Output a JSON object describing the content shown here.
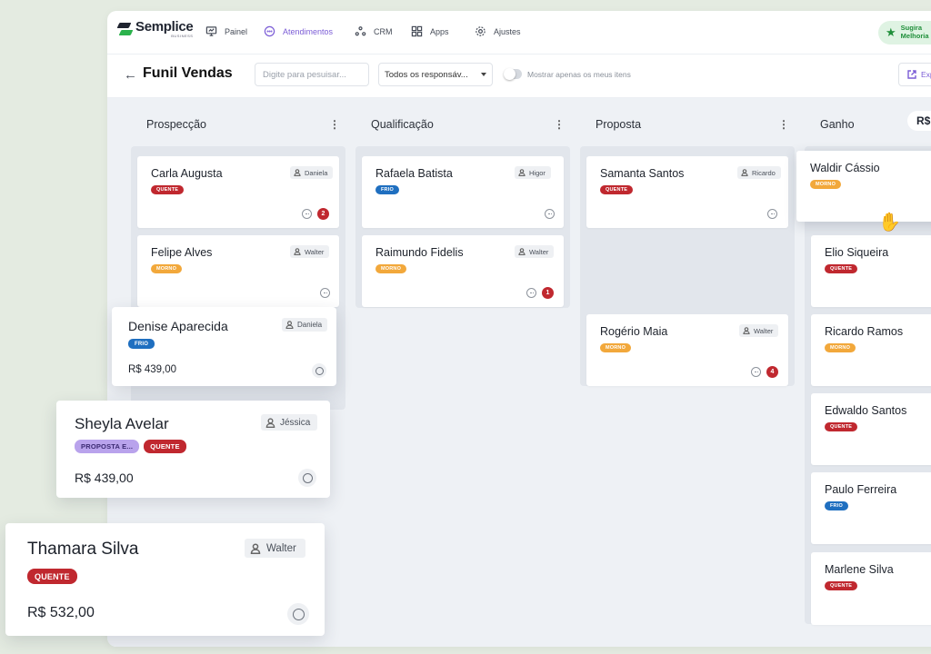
{
  "colors": {
    "quente": "#c0282f",
    "frio": "#1f6fc0",
    "morno": "#f2a83b",
    "proposta": "#b9a3ec",
    "accent": "#7b5cd6",
    "brand_green": "#2bb24c"
  },
  "logo": {
    "name": "Semplice",
    "sub": "BUSINESS"
  },
  "nav": [
    {
      "label": "Painel",
      "icon": "presentation-icon"
    },
    {
      "label": "Atendimentos",
      "icon": "chat-icon",
      "active": true
    },
    {
      "label": "CRM",
      "icon": "crm-icon"
    },
    {
      "label": "Apps",
      "icon": "apps-grid-icon"
    },
    {
      "label": "Ajustes",
      "icon": "gear-icon"
    }
  ],
  "sugira": {
    "line1": "Sugira",
    "line2": "Melhoria",
    "icon": "star-icon"
  },
  "toolbar": {
    "title": "Funil Vendas",
    "search_placeholder": "Digite para pesuisar...",
    "responsible_filter": "Todos os responsáv...",
    "toggle_label": "Mostrar apenas os meus itens",
    "export_label": "Exp"
  },
  "columns": [
    {
      "title": "Prospecção"
    },
    {
      "title": "Qualificação"
    },
    {
      "title": "Proposta"
    },
    {
      "title": "Ganho",
      "total": "R$"
    }
  ],
  "cards": {
    "carla": {
      "name": "Carla Augusta",
      "assignee": "Daniela",
      "tag": "QUENTE",
      "count": "2"
    },
    "felipe": {
      "name": "Felipe Alves",
      "assignee": "Walter",
      "tag": "MORNO"
    },
    "rafaela": {
      "name": "Rafaela Batista",
      "assignee": "Higor",
      "tag": "FRIO"
    },
    "raimundo": {
      "name": "Raimundo Fidelis",
      "assignee": "Walter",
      "tag": "MORNO",
      "count": "1"
    },
    "samanta": {
      "name": "Samanta Santos",
      "assignee": "Ricardo",
      "tag": "QUENTE"
    },
    "rogerio": {
      "name": "Rogério Maia",
      "assignee": "Walter",
      "tag": "MORNO",
      "count": "4"
    },
    "waldir": {
      "name": "Waldir Cássio",
      "tag": "MORNO"
    },
    "elio": {
      "name": "Elio Siqueira",
      "tag": "QUENTE"
    },
    "ricardo": {
      "name": "Ricardo Ramos",
      "tag": "MORNO"
    },
    "edwaldo": {
      "name": "Edwaldo Santos",
      "tag": "QUENTE"
    },
    "paulo": {
      "name": "Paulo Ferreira",
      "tag": "FRIO"
    },
    "marlene": {
      "name": "Marlene Silva",
      "tag": "QUENTE"
    }
  },
  "floating": {
    "denise": {
      "name": "Denise Aparecida",
      "assignee": "Daniela",
      "tag": "FRIO",
      "price": "R$ 439,00"
    },
    "sheyla": {
      "name": "Sheyla Avelar",
      "assignee": "Jéssica",
      "tag1": "PROPOSTA E...",
      "tag2": "QUENTE",
      "price": "R$ 439,00"
    },
    "thamara": {
      "name": "Thamara Silva",
      "assignee": "Walter",
      "tag": "QUENTE",
      "price": "R$ 532,00"
    }
  }
}
